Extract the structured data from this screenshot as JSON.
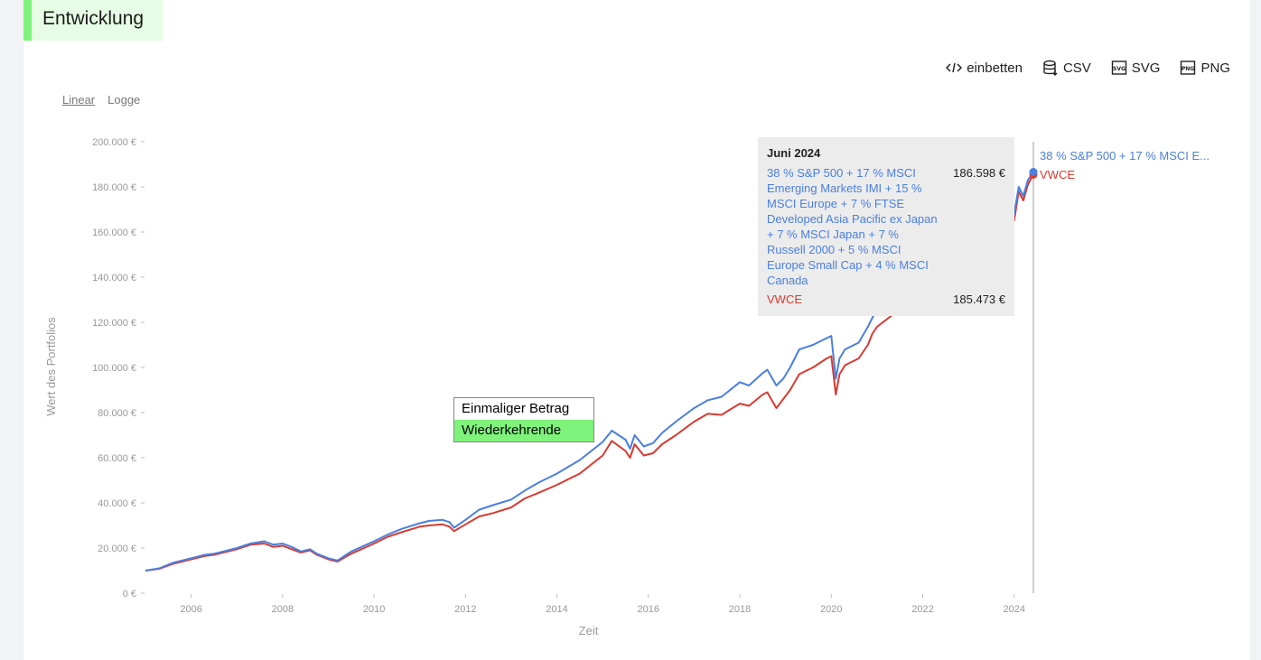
{
  "header": {
    "title": "Entwicklung"
  },
  "toolbar": {
    "embed_label": "einbetten",
    "csv_label": "CSV",
    "svg_label": "SVG",
    "png_label": "PNG"
  },
  "scale_toggle": {
    "linear": "Linear",
    "log": "Logge",
    "selected": "Linear"
  },
  "mode_box": {
    "once": "Einmaliger Betrag",
    "recurring": "Wiederkehrende",
    "selected": "Wiederkehrende"
  },
  "tooltip": {
    "title": "Juni 2024",
    "series1_name": "38 % S&P 500 + 17 % MSCI Emerging Markets IMI + 15 % MSCI Europe + 7 % FTSE Developed Asia Pacific ex Japan + 7 % MSCI Japan + 7 % Russell 2000 + 5 % MSCI Europe Small Cap + 4 % MSCI Canada",
    "series1_value": "186.598 €",
    "series2_name": "VWCE",
    "series2_value": "185.473 €"
  },
  "end_labels": {
    "series1": "38 % S&P 500 + 17 % MSCI E...",
    "series2": "VWCE"
  },
  "colors": {
    "series1": "#4a7fe0",
    "series2": "#d83a31",
    "accent": "#7ef27a"
  },
  "chart_data": {
    "type": "line",
    "xlabel": "Zeit",
    "ylabel": "Wert des Portfolios",
    "xlim": [
      2005.0,
      2024.42
    ],
    "ylim": [
      0,
      200000
    ],
    "x_ticks": [
      2006,
      2008,
      2010,
      2012,
      2014,
      2016,
      2018,
      2020,
      2022,
      2024
    ],
    "y_ticks": [
      0,
      20000,
      40000,
      60000,
      80000,
      100000,
      120000,
      140000,
      160000,
      180000,
      200000
    ],
    "y_tick_labels": [
      "0 €",
      "20.000 €",
      "40.000 €",
      "60.000 €",
      "80.000 €",
      "100.000 €",
      "120.000 €",
      "140.000 €",
      "160.000 €",
      "180.000 €",
      "200.000 €"
    ],
    "grid": false,
    "obscured_range": [
      2021.0,
      2023.9
    ],
    "series": [
      {
        "name": "38 % S&P 500 + 17 % MSCI Emerging Markets IMI + 15 % MSCI Europe + 7 % FTSE Developed Asia Pacific ex Japan + 7 % MSCI Japan + 7 % Russell 2000 + 5 % MSCI Europe Small Cap + 4 % MSCI Canada",
        "x": [
          2005.0,
          2005.3,
          2005.6,
          2006.0,
          2006.3,
          2006.5,
          2006.7,
          2007.0,
          2007.3,
          2007.6,
          2007.8,
          2008.0,
          2008.2,
          2008.4,
          2008.6,
          2008.75,
          2009.0,
          2009.2,
          2009.5,
          2010.0,
          2010.3,
          2010.6,
          2011.0,
          2011.2,
          2011.5,
          2011.65,
          2011.75,
          2012.0,
          2012.3,
          2012.6,
          2013.0,
          2013.3,
          2013.6,
          2014.0,
          2014.5,
          2015.0,
          2015.2,
          2015.5,
          2015.6,
          2015.7,
          2015.9,
          2016.1,
          2016.3,
          2016.6,
          2017.0,
          2017.3,
          2017.6,
          2018.0,
          2018.2,
          2018.5,
          2018.6,
          2018.8,
          2018.95,
          2019.1,
          2019.3,
          2019.6,
          2019.9,
          2020.0,
          2020.1,
          2020.18,
          2020.3,
          2020.6,
          2020.8,
          2020.9,
          2021.0,
          2024.0,
          2024.1,
          2024.2,
          2024.3,
          2024.42
        ],
        "y": [
          10000,
          11000,
          13500,
          15500,
          17000,
          17500,
          18500,
          20000,
          22000,
          23000,
          21500,
          22000,
          20500,
          18500,
          19500,
          17500,
          15500,
          14500,
          18500,
          23000,
          26000,
          28500,
          31000,
          32000,
          32500,
          31500,
          29000,
          32500,
          37000,
          39000,
          41500,
          45500,
          49000,
          53000,
          59000,
          67000,
          72000,
          68000,
          64000,
          70000,
          65000,
          66500,
          71000,
          76000,
          82000,
          85500,
          87000,
          93500,
          92000,
          97500,
          99000,
          92000,
          95000,
          100000,
          108000,
          110000,
          113000,
          114000,
          95000,
          104000,
          108000,
          111000,
          118000,
          122000,
          126000,
          168000,
          180000,
          176000,
          183000,
          186598
        ]
      },
      {
        "name": "VWCE",
        "x": [
          2005.0,
          2005.3,
          2005.6,
          2006.0,
          2006.3,
          2006.5,
          2006.7,
          2007.0,
          2007.3,
          2007.6,
          2007.8,
          2008.0,
          2008.2,
          2008.4,
          2008.6,
          2008.75,
          2009.0,
          2009.2,
          2009.5,
          2010.0,
          2010.3,
          2010.6,
          2011.0,
          2011.2,
          2011.5,
          2011.65,
          2011.75,
          2012.0,
          2012.3,
          2012.6,
          2013.0,
          2013.3,
          2013.6,
          2014.0,
          2014.5,
          2015.0,
          2015.2,
          2015.5,
          2015.6,
          2015.7,
          2015.9,
          2016.1,
          2016.3,
          2016.6,
          2017.0,
          2017.3,
          2017.6,
          2018.0,
          2018.2,
          2018.5,
          2018.6,
          2018.8,
          2018.95,
          2019.1,
          2019.3,
          2019.6,
          2019.9,
          2020.0,
          2020.1,
          2020.18,
          2020.3,
          2020.6,
          2020.8,
          2020.9,
          2021.0,
          2024.0,
          2024.1,
          2024.2,
          2024.3,
          2024.42
        ],
        "y": [
          10000,
          10800,
          13000,
          15000,
          16500,
          17000,
          18000,
          19500,
          21500,
          22000,
          20500,
          21000,
          19500,
          18000,
          19000,
          17000,
          15000,
          14000,
          17500,
          22000,
          25000,
          27000,
          29500,
          30000,
          30500,
          29500,
          27500,
          30500,
          34000,
          35500,
          38000,
          42000,
          44500,
          48000,
          53000,
          61000,
          67500,
          63000,
          60000,
          66000,
          61000,
          62000,
          66000,
          70000,
          76000,
          79500,
          79000,
          84000,
          83000,
          88000,
          89000,
          82000,
          86000,
          90000,
          97000,
          100000,
          104000,
          105000,
          88000,
          97000,
          101000,
          104000,
          110000,
          115000,
          118000,
          165000,
          178000,
          174000,
          181000,
          185473
        ]
      }
    ]
  }
}
